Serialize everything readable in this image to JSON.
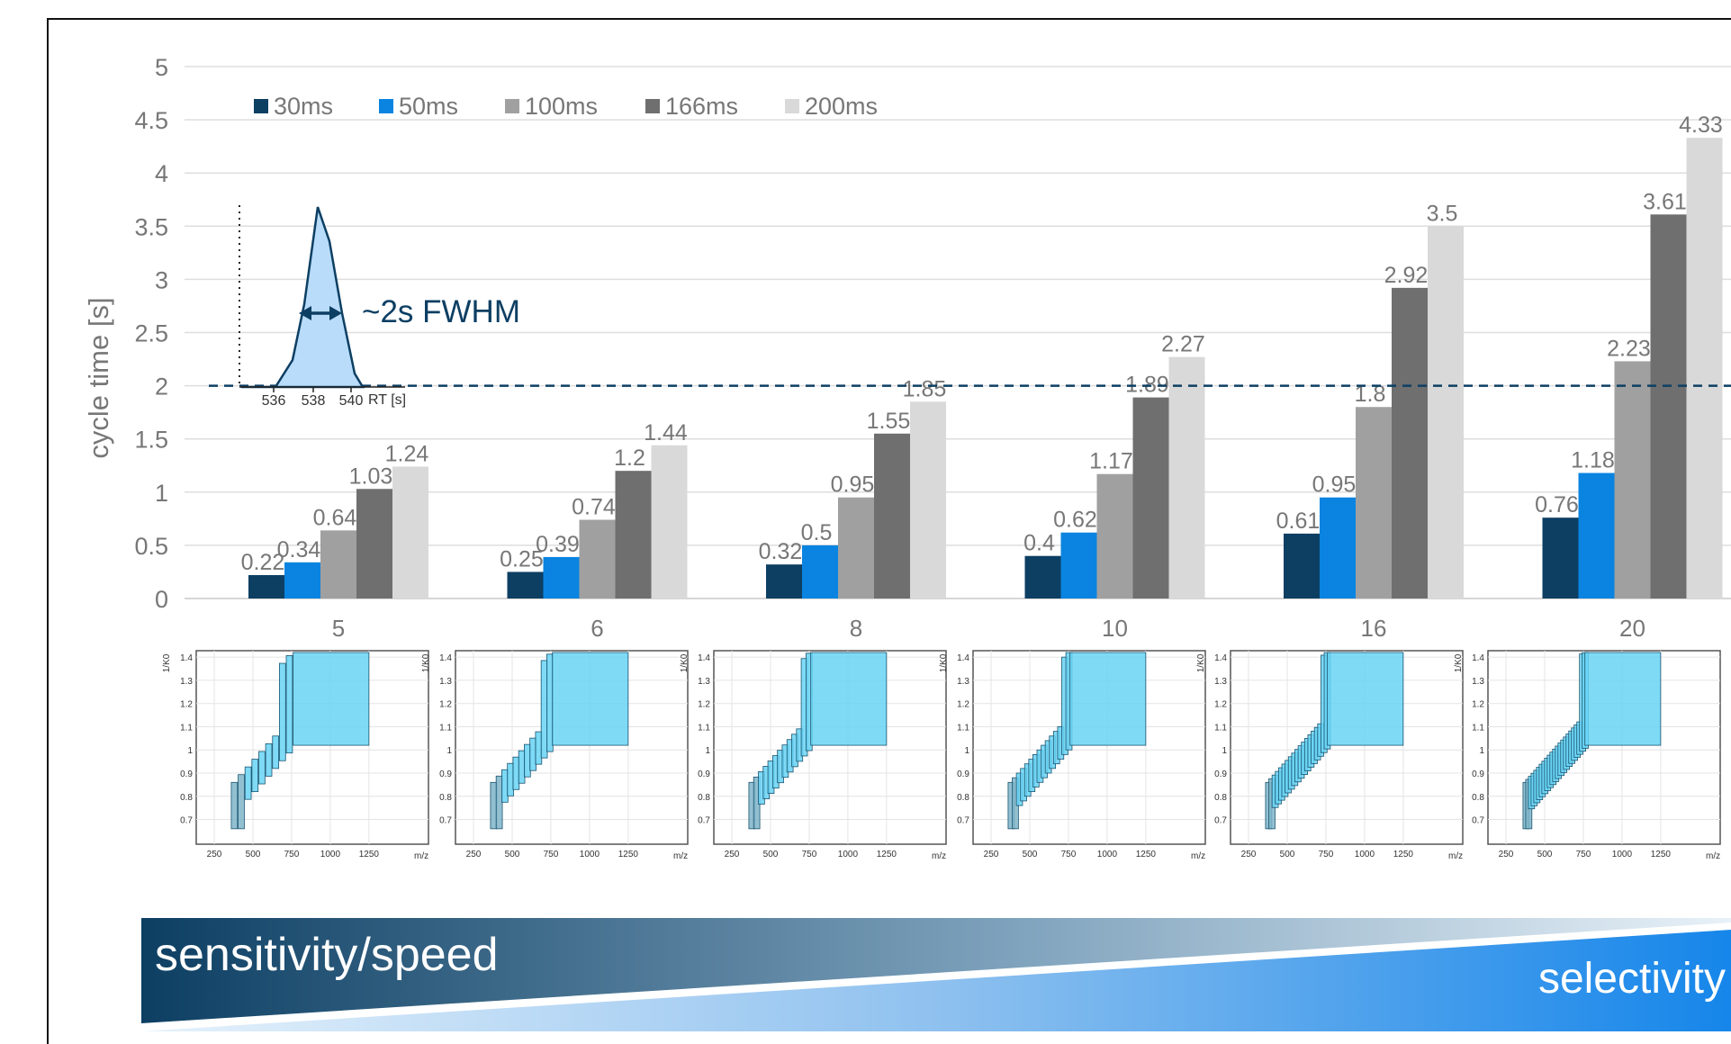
{
  "chart_data": {
    "type": "bar",
    "ylabel": "cycle time [s]",
    "ylim": [
      0,
      5
    ],
    "yticks": [
      "0",
      "0.5",
      "1",
      "1.5",
      "2",
      "2.5",
      "3",
      "3.5",
      "4",
      "4.5",
      "5"
    ],
    "grid": true,
    "legend_position": "top-left",
    "categories": [
      "5",
      "6",
      "8",
      "10",
      "16",
      "20"
    ],
    "series": [
      {
        "name": "30ms",
        "color": "#0d3f63",
        "values": [
          0.22,
          0.25,
          0.32,
          0.4,
          0.61,
          0.76
        ]
      },
      {
        "name": "50ms",
        "color": "#0a84e0",
        "values": [
          0.34,
          0.39,
          0.5,
          0.62,
          0.95,
          1.18
        ]
      },
      {
        "name": "100ms",
        "color": "#a0a0a0",
        "values": [
          0.64,
          0.74,
          0.95,
          1.17,
          1.8,
          2.23
        ]
      },
      {
        "name": "166ms",
        "color": "#6f6f6f",
        "values": [
          1.03,
          1.2,
          1.55,
          1.89,
          2.92,
          3.61
        ]
      },
      {
        "name": "200ms",
        "color": "#d9d9d9",
        "values": [
          1.24,
          1.44,
          1.85,
          2.27,
          3.5,
          4.33
        ]
      }
    ],
    "reference_line": {
      "y": 2,
      "style": "dashed",
      "color": "#0d3f63"
    },
    "inset_peak": {
      "label": "~2s FWHM",
      "x_ticks": [
        "536",
        "538",
        "540"
      ],
      "x_unit": "RT [s]"
    },
    "window_plots": {
      "y_label": "1/K0",
      "x_label": "m/z",
      "y_ticks": [
        "0.7",
        "0.8",
        "0.9",
        "1",
        "1.1",
        "1.2",
        "1.3",
        "1.4"
      ],
      "x_ticks": [
        "250",
        "500",
        "750",
        "1000",
        "1250"
      ]
    }
  },
  "banner": {
    "left_label": "sensitivity/speed",
    "right_label": "selectivity"
  }
}
